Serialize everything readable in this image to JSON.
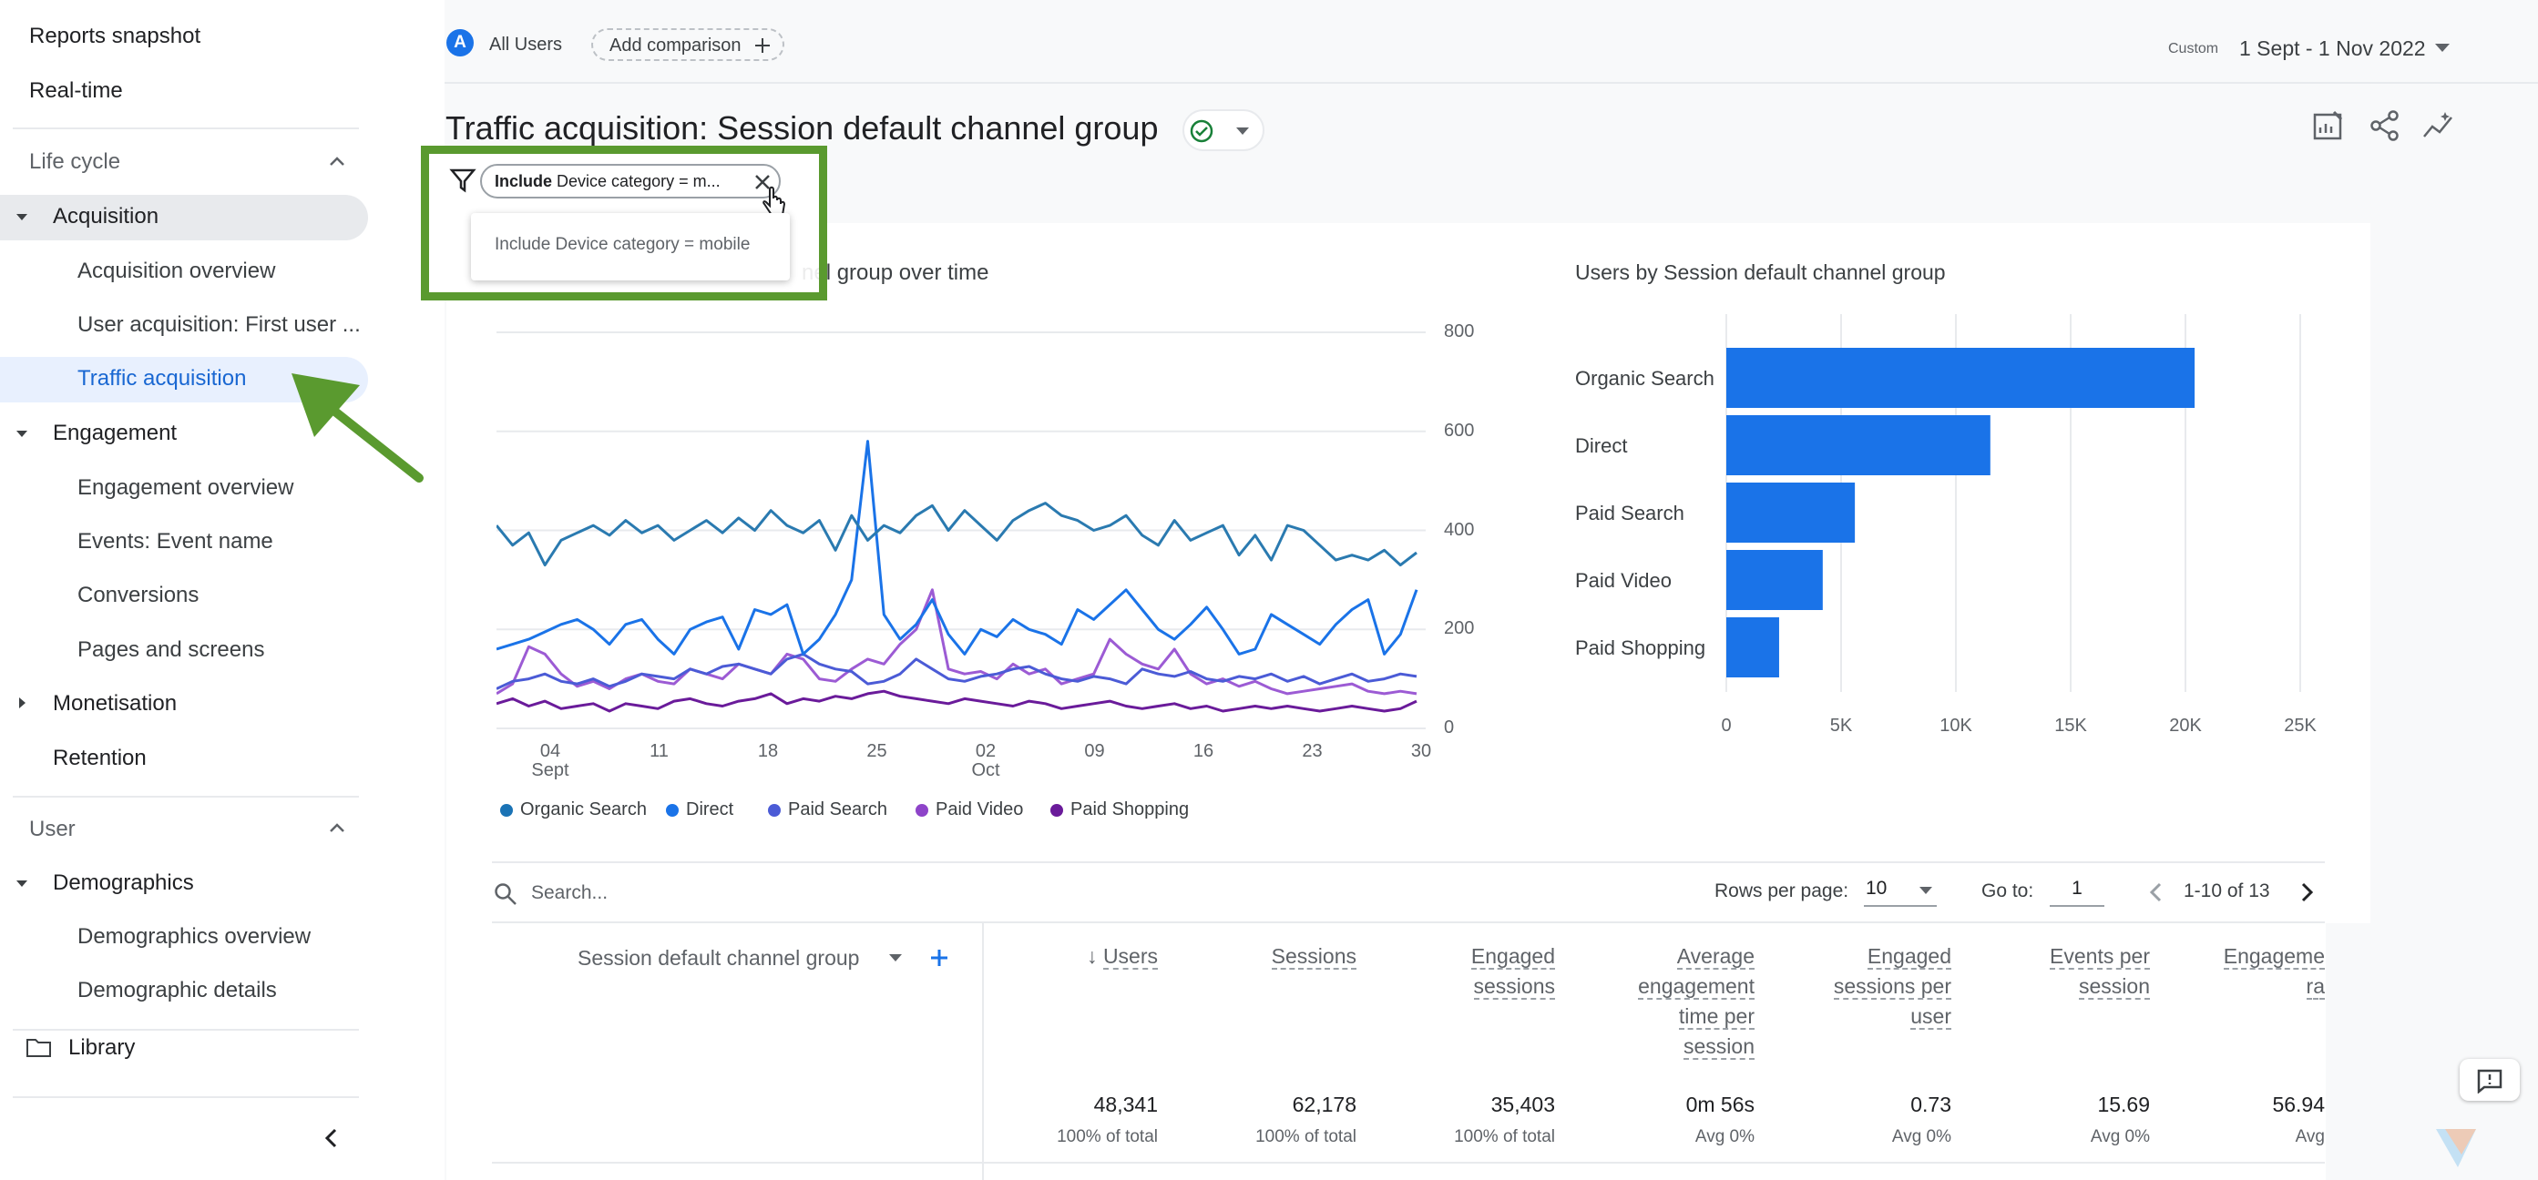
{
  "sidebar": {
    "top_items": [
      "Reports snapshot",
      "Real-time"
    ],
    "lifecycle": {
      "title": "Life cycle",
      "acquisition": {
        "label": "Acquisition",
        "children": [
          "Acquisition overview",
          "User acquisition: First user ...",
          "Traffic acquisition"
        ]
      },
      "engagement": {
        "label": "Engagement",
        "children": [
          "Engagement overview",
          "Events: Event name",
          "Conversions",
          "Pages and screens"
        ]
      },
      "monetisation": "Monetisation",
      "retention": "Retention"
    },
    "user": {
      "title": "User",
      "demographics": {
        "label": "Demographics",
        "children": [
          "Demographics overview",
          "Demographic details"
        ]
      }
    },
    "library": "Library"
  },
  "header": {
    "segment_badge": "A",
    "segment_label": "All Users",
    "add_comparison": "Add comparison",
    "date_prefix": "Custom",
    "date_range": "1 Sept - 1 Nov 2022"
  },
  "page": {
    "title": "Traffic acquisition: Session default channel group"
  },
  "filter": {
    "chip_bold": "Include",
    "chip_text": "Device category = m...",
    "tooltip": "Include Device category = mobile"
  },
  "line_chart": {
    "title_fragment": "nel group over time",
    "y_ticks": [
      "800",
      "600",
      "400",
      "200",
      "0"
    ],
    "x_ticks": [
      {
        "label": "04",
        "sub": "Sept"
      },
      {
        "label": "11",
        "sub": ""
      },
      {
        "label": "18",
        "sub": ""
      },
      {
        "label": "25",
        "sub": ""
      },
      {
        "label": "02",
        "sub": "Oct"
      },
      {
        "label": "09",
        "sub": ""
      },
      {
        "label": "16",
        "sub": ""
      },
      {
        "label": "23",
        "sub": ""
      },
      {
        "label": "30",
        "sub": ""
      }
    ],
    "legend": [
      {
        "name": "Organic Search",
        "color": "#1a73b5"
      },
      {
        "name": "Direct",
        "color": "#1a73e8"
      },
      {
        "name": "Paid Search",
        "color": "#4b5bd6"
      },
      {
        "name": "Paid Video",
        "color": "#8e44c9"
      },
      {
        "name": "Paid Shopping",
        "color": "#6a1b9a"
      }
    ]
  },
  "chart_data": [
    {
      "type": "line",
      "title": "",
      "ylim": [
        0,
        800
      ],
      "series": [
        {
          "name": "Organic Search",
          "color": "#2a7ab0",
          "values": [
            410,
            370,
            395,
            330,
            380,
            395,
            410,
            390,
            420,
            395,
            410,
            380,
            400,
            420,
            395,
            425,
            400,
            440,
            410,
            395,
            420,
            360,
            430,
            380,
            410,
            395,
            430,
            450,
            400,
            440,
            410,
            380,
            420,
            440,
            455,
            430,
            420,
            400,
            410,
            430,
            390,
            370,
            420,
            380,
            395,
            410,
            350,
            390,
            340,
            410,
            400,
            370,
            340,
            350,
            340,
            360,
            330,
            355
          ]
        },
        {
          "name": "Direct",
          "color": "#1a73e8",
          "values": [
            160,
            170,
            180,
            195,
            210,
            220,
            200,
            170,
            210,
            220,
            180,
            150,
            200,
            215,
            225,
            160,
            240,
            230,
            250,
            150,
            180,
            230,
            300,
            580,
            230,
            180,
            210,
            260,
            190,
            150,
            200,
            185,
            220,
            200,
            190,
            170,
            240,
            220,
            250,
            280,
            240,
            200,
            180,
            210,
            245,
            200,
            150,
            160,
            230,
            210,
            190,
            170,
            210,
            240,
            260,
            150,
            190,
            280
          ]
        },
        {
          "name": "Paid Search",
          "color": "#4b5bd6",
          "values": [
            80,
            95,
            100,
            110,
            95,
            90,
            100,
            85,
            95,
            110,
            105,
            100,
            120,
            110,
            125,
            130,
            120,
            110,
            140,
            150,
            130,
            120,
            115,
            90,
            95,
            110,
            140,
            120,
            100,
            95,
            105,
            110,
            120,
            125,
            110,
            100,
            95,
            105,
            100,
            90,
            120,
            110,
            105,
            115,
            100,
            95,
            105,
            100,
            110,
            95,
            105,
            90,
            100,
            110,
            95,
            100,
            110,
            105
          ]
        },
        {
          "name": "Paid Video",
          "color": "#9c5bd4",
          "values": [
            70,
            90,
            165,
            150,
            110,
            85,
            95,
            80,
            100,
            110,
            95,
            90,
            120,
            110,
            100,
            130,
            120,
            110,
            150,
            140,
            100,
            95,
            120,
            140,
            130,
            170,
            200,
            280,
            120,
            110,
            115,
            100,
            130,
            110,
            120,
            90,
            100,
            110,
            180,
            150,
            130,
            120,
            160,
            110,
            90,
            100,
            85,
            95,
            80,
            70,
            75,
            80,
            85,
            90,
            75,
            70,
            75,
            70
          ]
        },
        {
          "name": "Paid Shopping",
          "color": "#6a1b9a",
          "values": [
            50,
            60,
            45,
            55,
            40,
            45,
            50,
            35,
            50,
            45,
            40,
            55,
            60,
            50,
            45,
            55,
            60,
            70,
            50,
            60,
            55,
            65,
            60,
            70,
            75,
            65,
            60,
            55,
            50,
            60,
            55,
            50,
            45,
            55,
            50,
            40,
            45,
            50,
            55,
            45,
            40,
            45,
            50,
            40,
            45,
            35,
            40,
            45,
            40,
            45,
            40,
            35,
            40,
            45,
            40,
            35,
            40,
            55
          ]
        }
      ]
    },
    {
      "type": "bar",
      "title": "Users by Session default channel group",
      "categories": [
        "Organic Search",
        "Direct",
        "Paid Search",
        "Paid Video",
        "Paid Shopping"
      ],
      "values": [
        20400,
        11500,
        5600,
        4200,
        2300
      ],
      "xlim": [
        0,
        25000
      ],
      "x_ticks": [
        "0",
        "5K",
        "10K",
        "15K",
        "20K",
        "25K"
      ],
      "color": "#1a73e8"
    }
  ],
  "table": {
    "search_placeholder": "Search...",
    "rows_per_page_label": "Rows per page:",
    "rows_per_page_value": "10",
    "goto_label": "Go to:",
    "goto_value": "1",
    "pagination": "1-10 of 13",
    "dimension_header": "Session default channel group",
    "columns": [
      {
        "header": [
          "Users"
        ],
        "value": "48,341",
        "sub": "100% of total",
        "sorted": true
      },
      {
        "header": [
          "Sessions"
        ],
        "value": "62,178",
        "sub": "100% of total"
      },
      {
        "header": [
          "Engaged",
          "sessions"
        ],
        "value": "35,403",
        "sub": "100% of total"
      },
      {
        "header": [
          "Average",
          "engagement",
          "time per",
          "session"
        ],
        "value": "0m 56s",
        "sub": "Avg 0%"
      },
      {
        "header": [
          "Engaged",
          "sessions per",
          "user"
        ],
        "value": "0.73",
        "sub": "Avg 0%"
      },
      {
        "header": [
          "Events per",
          "session"
        ],
        "value": "15.69",
        "sub": "Avg 0%"
      },
      {
        "header": [
          "Engageme",
          "ra"
        ],
        "value": "56.94",
        "sub": "Avg"
      }
    ]
  }
}
